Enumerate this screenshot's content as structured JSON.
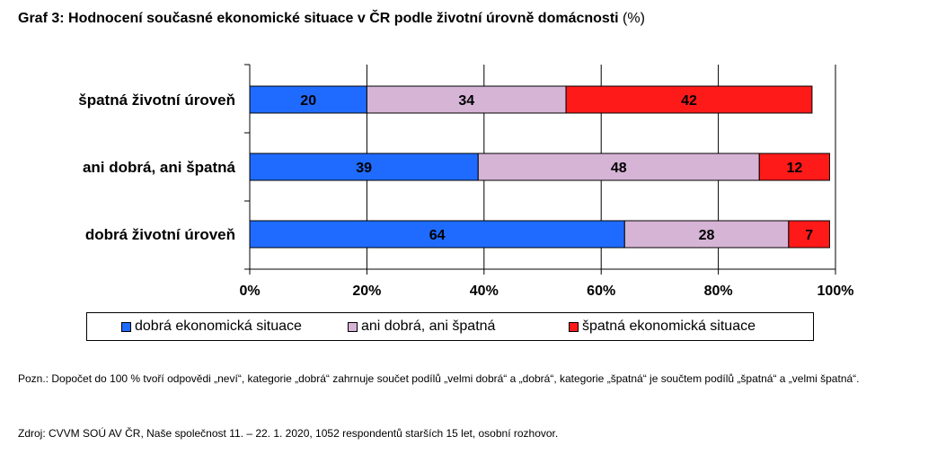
{
  "title": "Graf 3: Hodnocení současné ekonomické situace v ČR podle životní úrovně domácnosti",
  "title_unit": "(%)",
  "colors": {
    "good": "#1f6bff",
    "neutral": "#d6b4d6",
    "bad": "#ff1a1a"
  },
  "chart_data": {
    "type": "bar",
    "orientation": "horizontal",
    "stacked": true,
    "categories": [
      "špatná životní úroveň",
      "ani dobrá, ani špatná",
      "dobrá životní úroveň"
    ],
    "series": [
      {
        "name": "dobrá ekonomická situace",
        "values": [
          20,
          39,
          64
        ]
      },
      {
        "name": "ani dobrá, ani špatná",
        "values": [
          34,
          48,
          28
        ]
      },
      {
        "name": "špatná ekonomická situace",
        "values": [
          42,
          12,
          7
        ]
      }
    ],
    "xlim": [
      0,
      100
    ],
    "xticks": [
      "0%",
      "20%",
      "40%",
      "60%",
      "80%",
      "100%"
    ],
    "grid": true,
    "legend_position": "bottom"
  },
  "note": "Pozn.: Dopočet do 100 % tvoří odpovědi „neví“, kategorie „dobrá“ zahrnuje součet podílů „velmi dobrá“ a „dobrá“, kategorie „špatná“ je součtem podílů „špatná“ a „velmi špatná“.",
  "source": "Zdroj: CVVM SOÚ AV ČR, Naše společnost 11. – 22. 1. 2020, 1052 respondentů starších 15 let, osobní rozhovor."
}
